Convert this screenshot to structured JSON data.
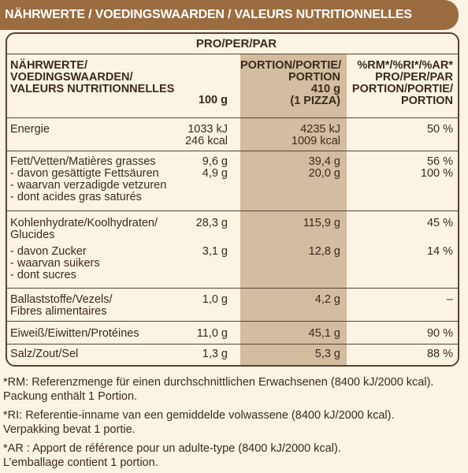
{
  "banner": "NÄHRWERTE / VOEDINGSWAARDEN / VALEURS NUTRITIONNELLES",
  "header": {
    "per": "PRO/PER/PAR",
    "col1": [
      "NÄHRWERTE/",
      "VOEDINGSWAARDEN/",
      "VALEURS NUTRITIONNELLES"
    ],
    "col2": "100 g",
    "col3": [
      "PORTION/PORTIE/",
      "PORTION",
      "410 g",
      "(1 PIZZA)"
    ],
    "col4": [
      "%RM*/%RI*/%AR*",
      "PRO/PER/PAR",
      "PORTION/PORTIE/",
      "PORTION"
    ]
  },
  "rows": {
    "energie": {
      "label": "Energie",
      "v100": [
        "1033 kJ",
        "246 kcal"
      ],
      "vportion": [
        "4235 kJ",
        "1009 kcal"
      ],
      "pct": "50 %"
    },
    "fett": {
      "label": "Fett/Vetten/Matières grasses",
      "v100": "9,6 g",
      "vportion": "39,4 g",
      "pct": "56 %",
      "sub": [
        "- davon gesättigte Fettsäuren",
        "- waarvan verzadigde vetzuren",
        "- dont acides gras saturés"
      ],
      "sub_v100": "4,9 g",
      "sub_vportion": "20,0 g",
      "sub_pct": "100 %"
    },
    "kh": {
      "label": [
        "Kohlenhydrate/Koolhydraten/",
        "Glucides"
      ],
      "v100": "28,3 g",
      "vportion": "115,9 g",
      "pct": "45 %",
      "sub": [
        "- davon Zucker",
        "- waarvan suikers",
        "- dont sucres"
      ],
      "sub_v100": "3,1 g",
      "sub_vportion": "12,8 g",
      "sub_pct": "14 %"
    },
    "ballast": {
      "label": [
        "Ballaststoffe/Vezels/",
        "Fibres alimentaires"
      ],
      "v100": "1,0 g",
      "vportion": "4,2 g",
      "pct": "–"
    },
    "eiweiss": {
      "label": "Eiweiß/Eiwitten/Protéines",
      "v100": "11,0 g",
      "vportion": "45,1 g",
      "pct": "90 %"
    },
    "salz": {
      "label": "Salz/Zout/Sel",
      "v100": "1,3 g",
      "vportion": "5,3 g",
      "pct": "88 %"
    }
  },
  "footnotes": [
    "*RM: Referenzmenge für einen durchschnittlichen Erwachsenen (8400 kJ/2000 kcal).",
    "Packung enthält 1 Portion.",
    "*RI: Referentie-inname van een gemiddelde volwassene (8400 kJ/2000 kcal).",
    "Verpakking bevat 1 portie.",
    "*AR : Apport de référence pour un adulte-type (8400 kJ/2000 kcal).",
    "L’emballage contient 1 portion."
  ],
  "colors": {
    "banner": "#9a6c3f",
    "portion_band": "#d3bc9f",
    "background": "#fbf3e3",
    "text": "#3b2a1e"
  }
}
